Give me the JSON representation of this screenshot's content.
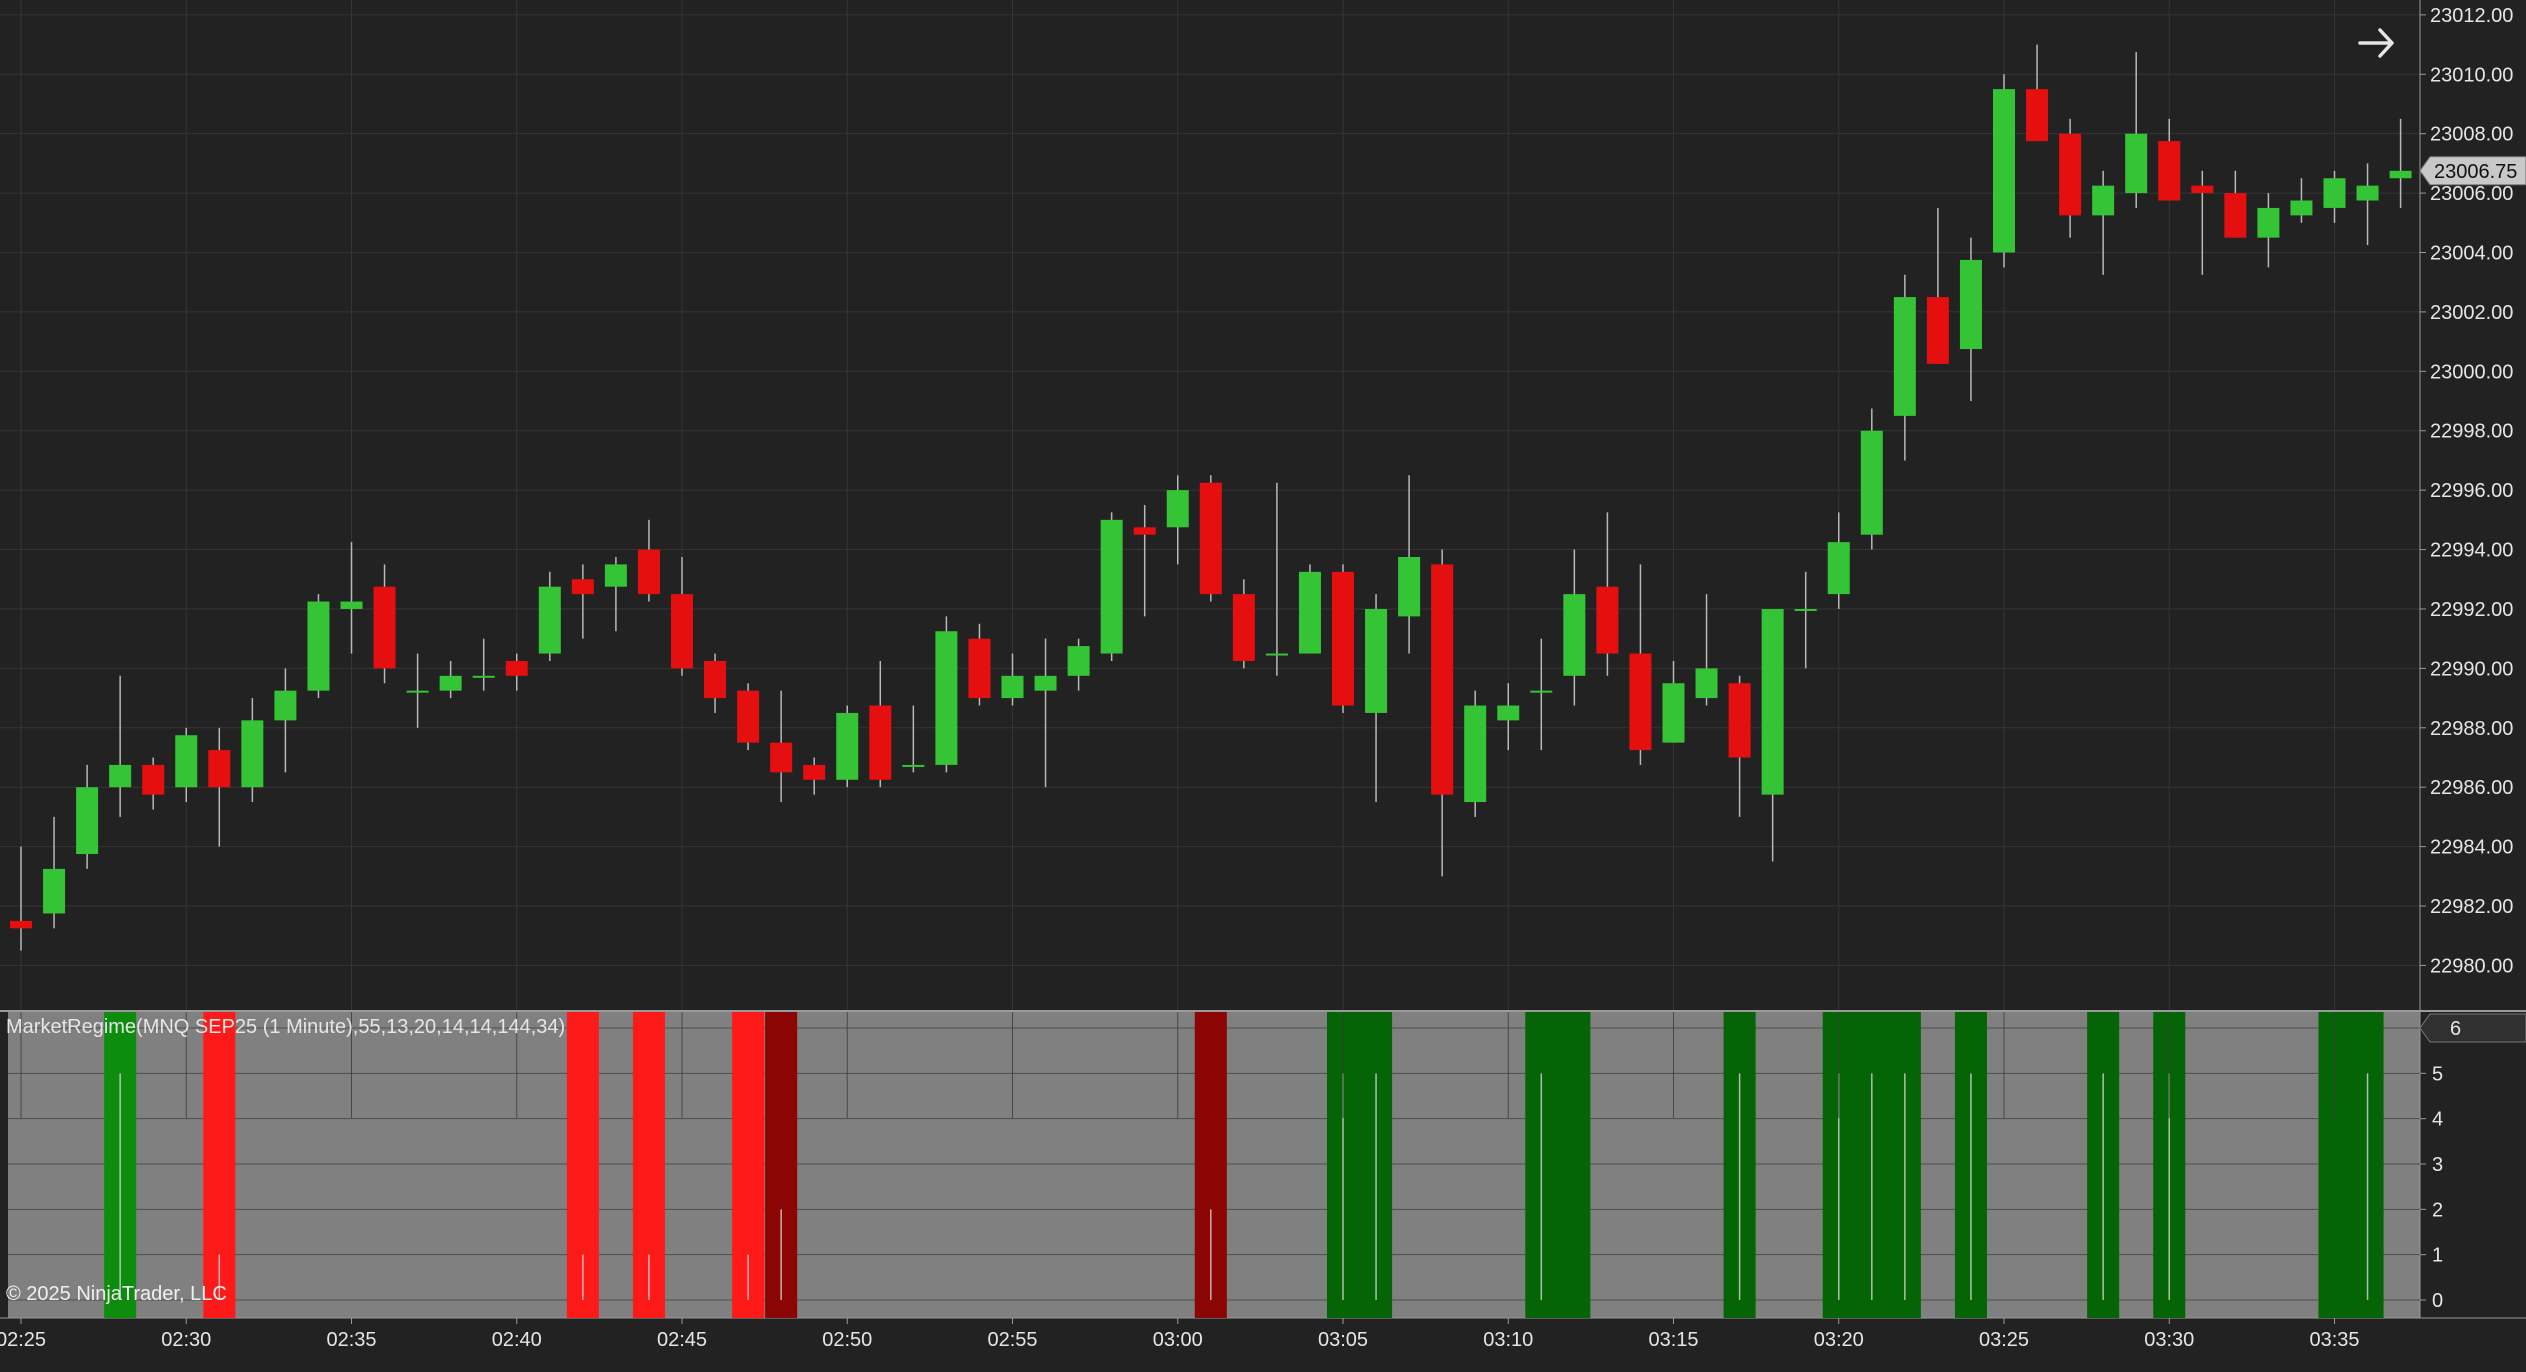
{
  "chart_data": {
    "type": "candlestick",
    "instrument_label": "MarketRegime(MNQ SEP25 (1 Minute),55,13,20,14,14,144,34)",
    "copyright": "© 2025 NinjaTrader, LLC",
    "last_price_label": "23006.75",
    "indicator_value_label": "6",
    "price_ylim": [
      22978.5,
      23012.5
    ],
    "price_ticks": [
      "22980.00",
      "22982.00",
      "22984.00",
      "22986.00",
      "22988.00",
      "22990.00",
      "22992.00",
      "22994.00",
      "22996.00",
      "22998.00",
      "23000.00",
      "23002.00",
      "23004.00",
      "23006.00",
      "23008.00",
      "23010.00",
      "23012.00"
    ],
    "indicator_ylim": [
      0,
      6
    ],
    "indicator_ticks": [
      "0",
      "1",
      "2",
      "3",
      "4",
      "5",
      "6"
    ],
    "x_time_labels": [
      "02:25",
      "02:30",
      "02:35",
      "02:40",
      "02:45",
      "02:50",
      "02:55",
      "03:00",
      "03:05",
      "03:10",
      "03:15",
      "03:20",
      "03:25",
      "03:30",
      "03:35"
    ],
    "first_bar_time": "02:25",
    "colors": {
      "background": "#222222",
      "grid": "#353535",
      "up": "#35c435",
      "down": "#e60f0f",
      "wick": "#b8b8b8",
      "indicator_bg": "#808080",
      "regime_green": "#056405",
      "regime_lightgreen": "#0e8c0e",
      "regime_red": "#ff1a1a",
      "regime_darkred": "#8b0505",
      "axis_text": "#e6e6e6",
      "last_price_box": "#c8c8c8"
    },
    "candles": [
      {
        "time": "02:25",
        "open": 22981.5,
        "high": 22984.0,
        "low": 22980.5,
        "close": 22981.25
      },
      {
        "time": "02:26",
        "open": 22981.75,
        "high": 22985.0,
        "low": 22981.25,
        "close": 22983.25
      },
      {
        "time": "02:27",
        "open": 22983.75,
        "high": 22986.75,
        "low": 22983.25,
        "close": 22986.0
      },
      {
        "time": "02:28",
        "open": 22986.0,
        "high": 22989.75,
        "low": 22985.0,
        "close": 22986.75
      },
      {
        "time": "02:29",
        "open": 22986.75,
        "high": 22987.0,
        "low": 22985.25,
        "close": 22985.75
      },
      {
        "time": "02:30",
        "open": 22986.0,
        "high": 22988.0,
        "low": 22985.5,
        "close": 22987.75
      },
      {
        "time": "02:31",
        "open": 22987.25,
        "high": 22988.0,
        "low": 22984.0,
        "close": 22986.0
      },
      {
        "time": "02:32",
        "open": 22986.0,
        "high": 22989.0,
        "low": 22985.5,
        "close": 22988.25
      },
      {
        "time": "02:33",
        "open": 22988.25,
        "high": 22990.0,
        "low": 22986.5,
        "close": 22989.25
      },
      {
        "time": "02:34",
        "open": 22989.25,
        "high": 22992.5,
        "low": 22989.0,
        "close": 22992.25
      },
      {
        "time": "02:35",
        "open": 22992.0,
        "high": 22994.25,
        "low": 22990.5,
        "close": 22992.25
      },
      {
        "time": "02:36",
        "open": 22992.75,
        "high": 22993.5,
        "low": 22989.5,
        "close": 22990.0
      },
      {
        "time": "02:37",
        "open": 22989.25,
        "high": 22990.5,
        "low": 22988.0,
        "close": 22989.25
      },
      {
        "time": "02:38",
        "open": 22989.25,
        "high": 22990.25,
        "low": 22989.0,
        "close": 22989.75
      },
      {
        "time": "02:39",
        "open": 22989.75,
        "high": 22991.0,
        "low": 22989.25,
        "close": 22989.75
      },
      {
        "time": "02:40",
        "open": 22990.25,
        "high": 22990.5,
        "low": 22989.25,
        "close": 22989.75
      },
      {
        "time": "02:41",
        "open": 22990.5,
        "high": 22993.25,
        "low": 22990.25,
        "close": 22992.75
      },
      {
        "time": "02:42",
        "open": 22993.0,
        "high": 22993.5,
        "low": 22991.0,
        "close": 22992.5
      },
      {
        "time": "02:43",
        "open": 22992.75,
        "high": 22993.75,
        "low": 22991.25,
        "close": 22993.5
      },
      {
        "time": "02:44",
        "open": 22994.0,
        "high": 22995.0,
        "low": 22992.25,
        "close": 22992.5
      },
      {
        "time": "02:45",
        "open": 22992.5,
        "high": 22993.75,
        "low": 22989.75,
        "close": 22990.0
      },
      {
        "time": "02:46",
        "open": 22990.25,
        "high": 22990.5,
        "low": 22988.5,
        "close": 22989.0
      },
      {
        "time": "02:47",
        "open": 22989.25,
        "high": 22989.5,
        "low": 22987.25,
        "close": 22987.5
      },
      {
        "time": "02:48",
        "open": 22987.5,
        "high": 22989.25,
        "low": 22985.5,
        "close": 22986.5
      },
      {
        "time": "02:49",
        "open": 22986.75,
        "high": 22987.0,
        "low": 22985.75,
        "close": 22986.25
      },
      {
        "time": "02:50",
        "open": 22986.25,
        "high": 22988.75,
        "low": 22986.0,
        "close": 22988.5
      },
      {
        "time": "02:51",
        "open": 22988.75,
        "high": 22990.25,
        "low": 22986.0,
        "close": 22986.25
      },
      {
        "time": "02:52",
        "open": 22986.75,
        "high": 22988.75,
        "low": 22986.5,
        "close": 22986.75
      },
      {
        "time": "02:53",
        "open": 22986.75,
        "high": 22991.75,
        "low": 22986.5,
        "close": 22991.25
      },
      {
        "time": "02:54",
        "open": 22991.0,
        "high": 22991.5,
        "low": 22988.75,
        "close": 22989.0
      },
      {
        "time": "02:55",
        "open": 22989.0,
        "high": 22990.5,
        "low": 22988.75,
        "close": 22989.75
      },
      {
        "time": "02:56",
        "open": 22989.25,
        "high": 22991.0,
        "low": 22986.0,
        "close": 22989.75
      },
      {
        "time": "02:57",
        "open": 22989.75,
        "high": 22991.0,
        "low": 22989.25,
        "close": 22990.75
      },
      {
        "time": "02:58",
        "open": 22990.5,
        "high": 22995.25,
        "low": 22990.25,
        "close": 22995.0
      },
      {
        "time": "02:59",
        "open": 22994.75,
        "high": 22995.5,
        "low": 22991.75,
        "close": 22994.5
      },
      {
        "time": "03:00",
        "open": 22994.75,
        "high": 22996.5,
        "low": 22993.5,
        "close": 22996.0
      },
      {
        "time": "03:01",
        "open": 22996.25,
        "high": 22996.5,
        "low": 22992.25,
        "close": 22992.5
      },
      {
        "time": "03:02",
        "open": 22992.5,
        "high": 22993.0,
        "low": 22990.0,
        "close": 22990.25
      },
      {
        "time": "03:03",
        "open": 22990.5,
        "high": 22996.25,
        "low": 22989.75,
        "close": 22990.5
      },
      {
        "time": "03:04",
        "open": 22990.5,
        "high": 22993.5,
        "low": 22990.5,
        "close": 22993.25
      },
      {
        "time": "03:05",
        "open": 22993.25,
        "high": 22993.5,
        "low": 22988.5,
        "close": 22988.75
      },
      {
        "time": "03:06",
        "open": 22988.5,
        "high": 22992.5,
        "low": 22985.5,
        "close": 22992.0
      },
      {
        "time": "03:07",
        "open": 22991.75,
        "high": 22996.5,
        "low": 22990.5,
        "close": 22993.75
      },
      {
        "time": "03:08",
        "open": 22993.5,
        "high": 22994.0,
        "low": 22983.0,
        "close": 22985.75
      },
      {
        "time": "03:09",
        "open": 22985.5,
        "high": 22989.25,
        "low": 22985.0,
        "close": 22988.75
      },
      {
        "time": "03:10",
        "open": 22988.25,
        "high": 22989.5,
        "low": 22987.25,
        "close": 22988.75
      },
      {
        "time": "03:11",
        "open": 22989.25,
        "high": 22991.0,
        "low": 22987.25,
        "close": 22989.25
      },
      {
        "time": "03:12",
        "open": 22989.75,
        "high": 22994.0,
        "low": 22988.75,
        "close": 22992.5
      },
      {
        "time": "03:13",
        "open": 22992.75,
        "high": 22995.25,
        "low": 22989.75,
        "close": 22990.5
      },
      {
        "time": "03:14",
        "open": 22990.5,
        "high": 22993.5,
        "low": 22986.75,
        "close": 22987.25
      },
      {
        "time": "03:15",
        "open": 22987.5,
        "high": 22990.25,
        "low": 22987.5,
        "close": 22989.5
      },
      {
        "time": "03:16",
        "open": 22989.0,
        "high": 22992.5,
        "low": 22988.75,
        "close": 22990.0
      },
      {
        "time": "03:17",
        "open": 22989.5,
        "high": 22989.75,
        "low": 22985.0,
        "close": 22987.0
      },
      {
        "time": "03:18",
        "open": 22985.75,
        "high": 22992.0,
        "low": 22983.5,
        "close": 22992.0
      },
      {
        "time": "03:19",
        "open": 22992.0,
        "high": 22993.25,
        "low": 22990.0,
        "close": 22992.0
      },
      {
        "time": "03:20",
        "open": 22992.5,
        "high": 22995.25,
        "low": 22992.0,
        "close": 22994.25
      },
      {
        "time": "03:21",
        "open": 22994.5,
        "high": 22998.75,
        "low": 22994.0,
        "close": 22998.0
      },
      {
        "time": "03:22",
        "open": 22998.5,
        "high": 23003.25,
        "low": 22997.0,
        "close": 23002.5
      },
      {
        "time": "03:23",
        "open": 23002.5,
        "high": 23005.5,
        "low": 23000.25,
        "close": 23000.25
      },
      {
        "time": "03:24",
        "open": 23000.75,
        "high": 23004.5,
        "low": 22999.0,
        "close": 23003.75
      },
      {
        "time": "03:25",
        "open": 23004.0,
        "high": 23010.0,
        "low": 23003.5,
        "close": 23009.5
      },
      {
        "time": "03:26",
        "open": 23009.5,
        "high": 23011.0,
        "low": 23007.75,
        "close": 23007.75
      },
      {
        "time": "03:27",
        "open": 23008.0,
        "high": 23008.5,
        "low": 23004.5,
        "close": 23005.25
      },
      {
        "time": "03:28",
        "open": 23005.25,
        "high": 23006.75,
        "low": 23003.25,
        "close": 23006.25
      },
      {
        "time": "03:29",
        "open": 23006.0,
        "high": 23010.75,
        "low": 23005.5,
        "close": 23008.0
      },
      {
        "time": "03:30",
        "open": 23007.75,
        "high": 23008.5,
        "low": 23005.75,
        "close": 23005.75
      },
      {
        "time": "03:31",
        "open": 23006.25,
        "high": 23006.75,
        "low": 23003.25,
        "close": 23006.0
      },
      {
        "time": "03:32",
        "open": 23006.0,
        "high": 23006.75,
        "low": 23004.5,
        "close": 23004.5
      },
      {
        "time": "03:33",
        "open": 23004.5,
        "high": 23006.0,
        "low": 23003.5,
        "close": 23005.5
      },
      {
        "time": "03:34",
        "open": 23005.25,
        "high": 23006.5,
        "low": 23005.0,
        "close": 23005.75
      },
      {
        "time": "03:35",
        "open": 23005.5,
        "high": 23006.75,
        "low": 23005.0,
        "close": 23006.5
      },
      {
        "time": "03:36",
        "open": 23005.75,
        "high": 23007.0,
        "low": 23004.25,
        "close": 23006.25
      },
      {
        "time": "03:37",
        "open": 23006.5,
        "high": 23008.5,
        "low": 23005.5,
        "close": 23006.75
      }
    ],
    "regime_spans": [
      {
        "start_time": "02:28",
        "end_time": "02:28",
        "color": "regime_lightgreen"
      },
      {
        "start_time": "02:31",
        "end_time": "02:31",
        "color": "regime_red"
      },
      {
        "start_time": "02:42",
        "end_time": "02:42",
        "color": "regime_red"
      },
      {
        "start_time": "02:44",
        "end_time": "02:44",
        "color": "regime_red"
      },
      {
        "start_time": "02:47",
        "end_time": "02:47",
        "color": "regime_red"
      },
      {
        "start_time": "02:48",
        "end_time": "02:48",
        "color": "regime_darkred"
      },
      {
        "start_time": "03:01",
        "end_time": "03:01",
        "color": "regime_darkred"
      },
      {
        "start_time": "03:05",
        "end_time": "03:06",
        "color": "regime_green"
      },
      {
        "start_time": "03:11",
        "end_time": "03:12",
        "color": "regime_green"
      },
      {
        "start_time": "03:17",
        "end_time": "03:17",
        "color": "regime_green"
      },
      {
        "start_time": "03:20",
        "end_time": "03:22",
        "color": "regime_green"
      },
      {
        "start_time": "03:24",
        "end_time": "03:24",
        "color": "regime_green"
      },
      {
        "start_time": "03:28",
        "end_time": "03:28",
        "color": "regime_green"
      },
      {
        "start_time": "03:30",
        "end_time": "03:30",
        "color": "regime_green"
      },
      {
        "start_time": "03:35",
        "end_time": "03:36",
        "color": "regime_green"
      }
    ],
    "indicator_spikes": [
      {
        "time": "02:28",
        "value": 5.0
      },
      {
        "time": "02:31",
        "value": 1.0
      },
      {
        "time": "02:42",
        "value": 1.0
      },
      {
        "time": "02:44",
        "value": 1.0
      },
      {
        "time": "02:47",
        "value": 1.0
      },
      {
        "time": "02:48",
        "value": 2.0
      },
      {
        "time": "03:01",
        "value": 2.0
      },
      {
        "time": "03:05",
        "value": 5.0
      },
      {
        "time": "03:06",
        "value": 5.0
      },
      {
        "time": "03:11",
        "value": 5.0
      },
      {
        "time": "03:17",
        "value": 5.0
      },
      {
        "time": "03:20",
        "value": 5.0
      },
      {
        "time": "03:21",
        "value": 5.0
      },
      {
        "time": "03:22",
        "value": 5.0
      },
      {
        "time": "03:24",
        "value": 5.0
      },
      {
        "time": "03:28",
        "value": 5.0
      },
      {
        "time": "03:30",
        "value": 5.0
      },
      {
        "time": "03:36",
        "value": 5.0
      }
    ]
  }
}
